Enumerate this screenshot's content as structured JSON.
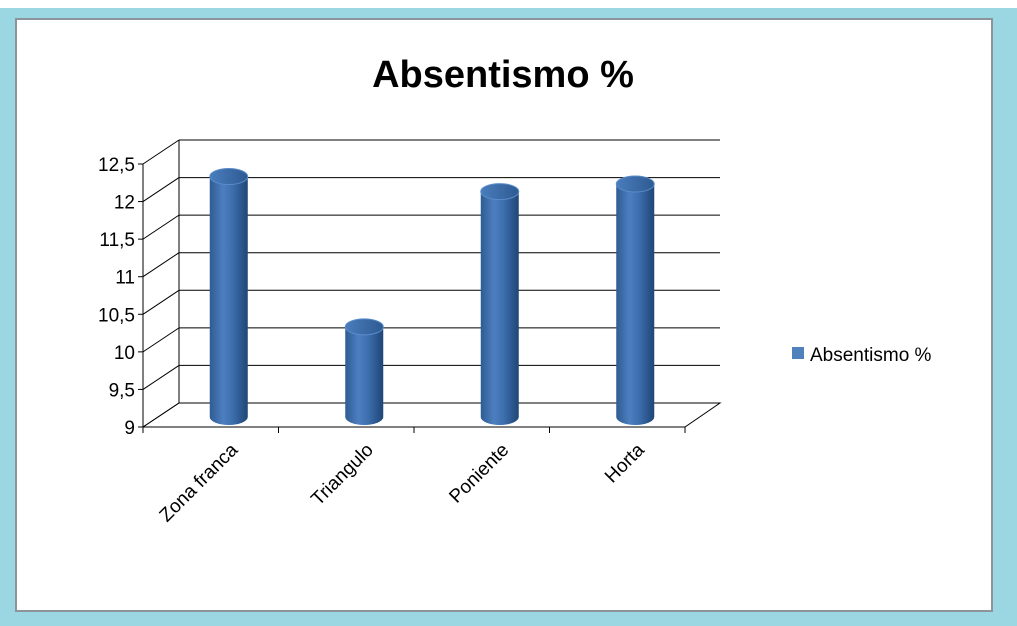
{
  "chart_data": {
    "type": "bar",
    "style": "3d-cylinder",
    "title": "Absentismo %",
    "categories": [
      "Zona franca",
      "Triangulo",
      "Poniente",
      "Horta"
    ],
    "series": [
      {
        "name": "Absentismo %",
        "values": [
          12.2,
          10.2,
          12.0,
          12.1
        ],
        "color": "#4f81bd"
      }
    ],
    "ylim": [
      9,
      12.5
    ],
    "yticks": [
      "9",
      "9,5",
      "10",
      "10,5",
      "11",
      "11,5",
      "12",
      "12,5"
    ],
    "grid": true,
    "legend": "right"
  }
}
